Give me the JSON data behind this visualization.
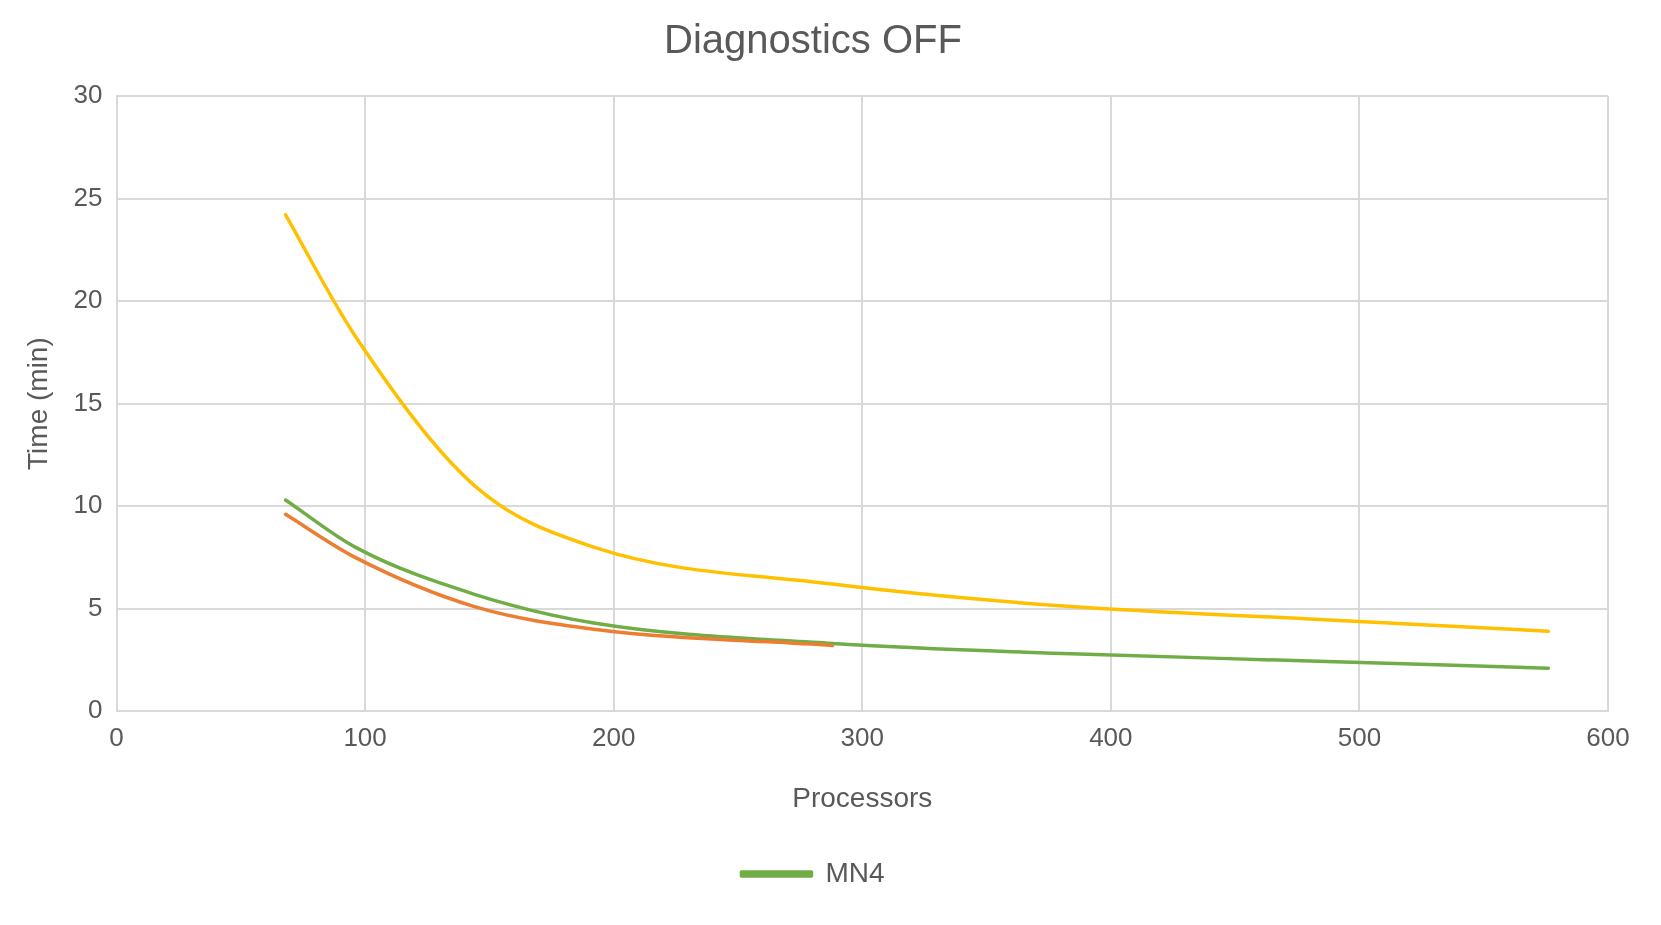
{
  "chart_data": {
    "type": "line",
    "title": "Diagnostics OFF",
    "xlabel": "Processors",
    "ylabel": "Time (min)",
    "x": [
      68,
      96,
      144,
      192,
      288,
      384,
      480,
      576
    ],
    "series": [
      {
        "color": "#ed7d31",
        "x": [
          68,
          96,
          144,
          192,
          288
        ],
        "values": [
          9.6,
          7.5,
          5.1,
          4.0,
          3.2
        ]
      },
      {
        "color": "#ffc000",
        "values": [
          24.2,
          18.3,
          11.0,
          8.0,
          6.2,
          5.1,
          4.5,
          3.9
        ]
      },
      {
        "name": "MN4",
        "color": "#70ad47",
        "values": [
          10.3,
          8.0,
          5.7,
          4.3,
          3.3,
          2.8,
          2.45,
          2.1
        ]
      }
    ],
    "xlim": [
      0,
      600
    ],
    "xticks": [
      0,
      100,
      200,
      300,
      400,
      500,
      600
    ],
    "ylim": [
      0,
      30
    ],
    "yticks": [
      0,
      5,
      10,
      15,
      20,
      25,
      30
    ],
    "grid": true,
    "legend": "bottom",
    "marker": "none",
    "line_style": "solid"
  }
}
